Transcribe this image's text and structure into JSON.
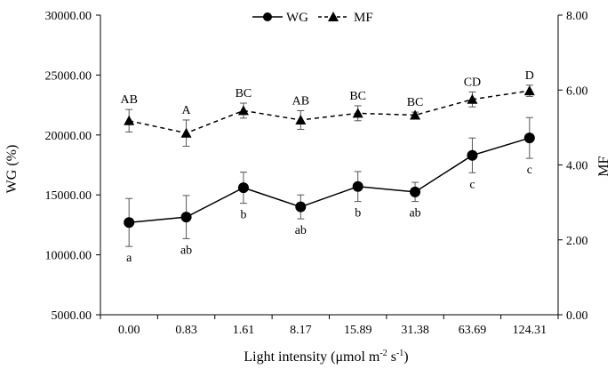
{
  "chart_data": {
    "type": "line",
    "xlabel_main": "Light intensity (μmol m",
    "xlabel_sup1": "-2",
    "xlabel_mid": " s",
    "xlabel_sup2": "-1",
    "xlabel_end": ")",
    "ylabel_left": "WG (%)",
    "ylabel_right": "MF",
    "categories": [
      "0.00",
      "0.83",
      "1.61",
      "8.17",
      "15.89",
      "31.38",
      "63.69",
      "124.31"
    ],
    "y_left": {
      "lim": [
        5000,
        30000
      ],
      "ticks": [
        "5000.00",
        "10000.00",
        "15000.00",
        "20000.00",
        "25000.00",
        "30000.00"
      ]
    },
    "y_right": {
      "lim": [
        0,
        8
      ],
      "ticks": [
        "0.00",
        "2.00",
        "4.00",
        "6.00",
        "8.00"
      ]
    },
    "legend_placement": "top-center",
    "grid": false,
    "series": [
      {
        "name": "WG",
        "axis": "left",
        "marker": "circle",
        "line_style": "solid",
        "color": "#000000",
        "values": [
          12700,
          13150,
          15600,
          14000,
          15700,
          15250,
          18300,
          19750
        ],
        "errors": [
          2000,
          1800,
          1300,
          1000,
          1250,
          800,
          1450,
          1700
        ],
        "labels": [
          "a",
          "ab",
          "b",
          "ab",
          "b",
          "ab",
          "c",
          "c"
        ]
      },
      {
        "name": "MF",
        "axis": "right",
        "marker": "triangle",
        "line_style": "dashed",
        "color": "#000000",
        "values": [
          5.18,
          4.85,
          5.45,
          5.2,
          5.38,
          5.33,
          5.75,
          5.98
        ],
        "errors": [
          0.3,
          0.35,
          0.2,
          0.25,
          0.2,
          0.08,
          0.2,
          0.15
        ],
        "labels": [
          "AB",
          "A",
          "BC",
          "AB",
          "BC",
          "BC",
          "CD",
          "D"
        ]
      }
    ]
  }
}
